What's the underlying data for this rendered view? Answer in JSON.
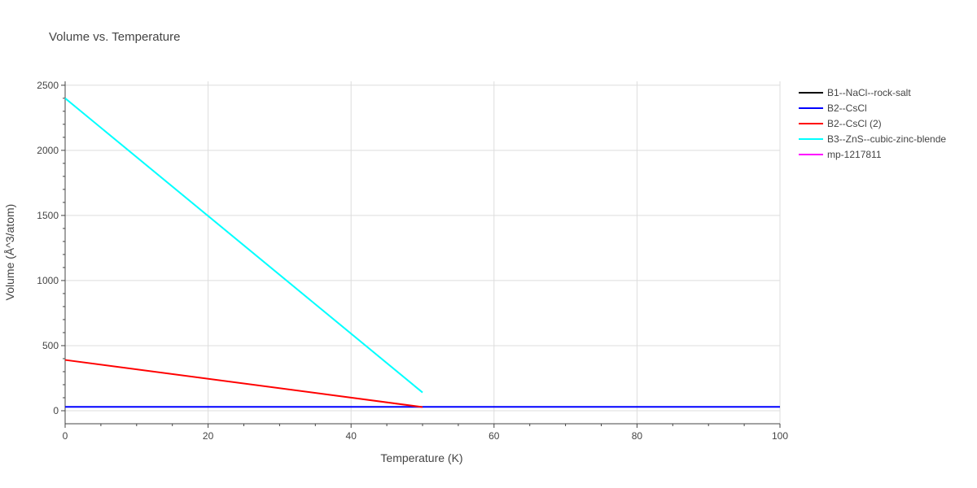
{
  "chart_data": {
    "type": "line",
    "title": "Volume vs. Temperature",
    "xlabel": "Temperature (K)",
    "ylabel": "Volume (Å^3/atom)",
    "xlim": [
      0,
      100
    ],
    "ylim": [
      -100,
      2530
    ],
    "x_ticks": [
      0,
      20,
      40,
      60,
      80,
      100
    ],
    "y_ticks": [
      0,
      500,
      1000,
      1500,
      2000,
      2500
    ],
    "grid": true,
    "legend_position": "top-right outside",
    "series": [
      {
        "name": "B1--NaCl--rock-salt",
        "color": "#000000",
        "x": [],
        "y": []
      },
      {
        "name": "B2--CsCl",
        "color": "#0000ff",
        "x": [
          0,
          100
        ],
        "y": [
          30,
          30
        ]
      },
      {
        "name": "B2--CsCl (2)",
        "color": "#ff0000",
        "x": [
          0,
          50
        ],
        "y": [
          390,
          28
        ]
      },
      {
        "name": "B3--ZnS--cubic-zinc-blende",
        "color": "#00ffff",
        "x": [
          0,
          50
        ],
        "y": [
          2400,
          140
        ]
      },
      {
        "name": "mp-1217811",
        "color": "#ff00ff",
        "x": [],
        "y": []
      }
    ]
  }
}
